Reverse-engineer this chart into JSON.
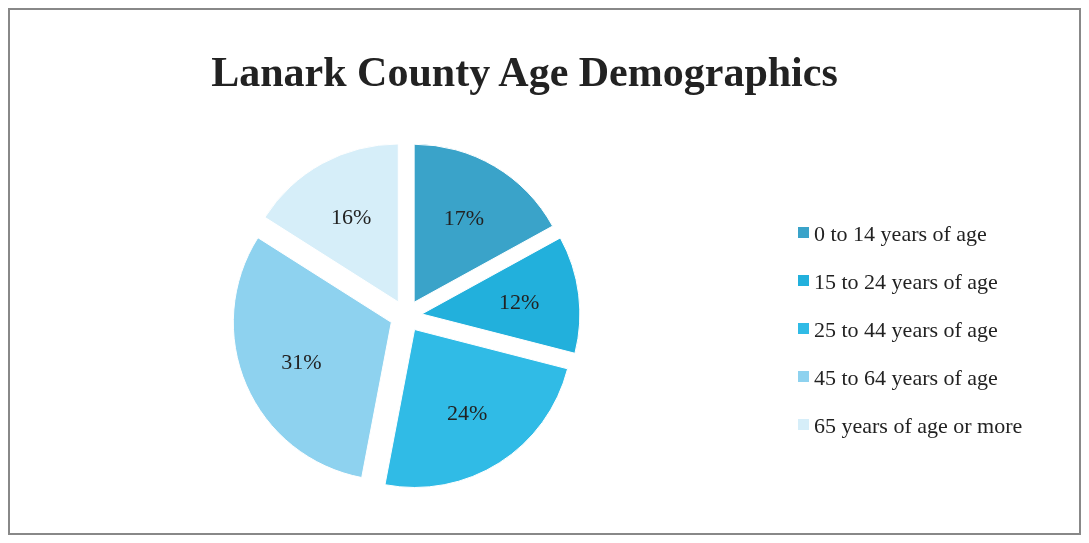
{
  "chart_data": {
    "type": "pie",
    "title": "Lanark County Age Demographics",
    "categories": [
      "0 to 14 years of age",
      "15 to 24 years of age",
      "25 to 44 years of age",
      "45 to 64 years of age",
      "65 years of age or more"
    ],
    "values": [
      17,
      12,
      24,
      31,
      16
    ],
    "colors": [
      "#3aa3c9",
      "#22b0dc",
      "#30bbe6",
      "#8ed2ef",
      "#d6eef9"
    ],
    "value_labels": [
      "17%",
      "12%",
      "24%",
      "31%",
      "16%"
    ],
    "legend": "right"
  }
}
